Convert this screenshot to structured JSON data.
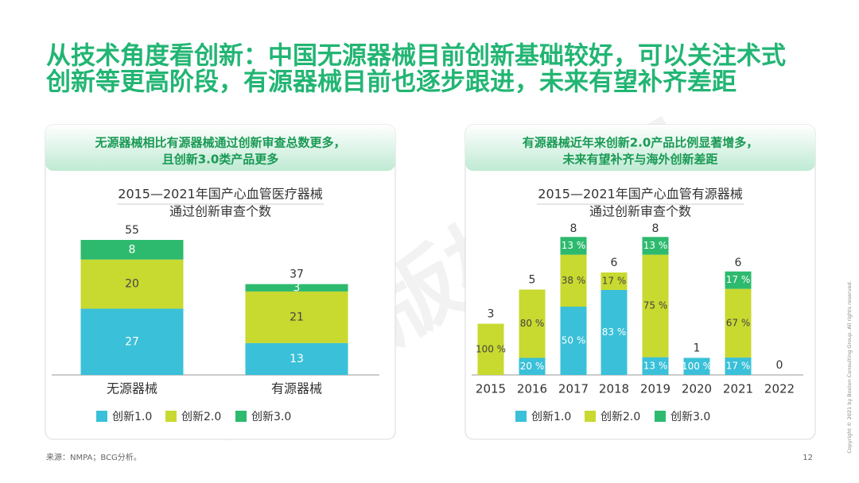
{
  "slide": {
    "title": [
      "从技术角度看创新：中国无源器械目前创新基础较好，可以关注术式",
      "创新等更高阶段，有源器械目前也逐步跟进，未来有望补齐差距"
    ],
    "watermark": "BCG版权所有",
    "source": "来源：NMPA；BCG分析。",
    "page_number": "12",
    "copyright": "Copyright © 2021 by Boston Consulting Group. All rights reserved."
  },
  "panels": [
    {
      "header": [
        "无源器械相比有源器械通过创新审查总数更多，",
        "且创新3.0类产品更多"
      ]
    },
    {
      "header": [
        "有源器械近年来创新2.0产品比例显著增多，",
        "未来有望补齐与海外创新差距"
      ]
    }
  ],
  "chart_data": [
    {
      "type": "stacked_bar",
      "title": [
        "2015—2021年国产心血管医疗器械",
        "通过创新审查个数"
      ],
      "categories": [
        "无源器械",
        "有源器械"
      ],
      "totals": [
        55,
        37
      ],
      "series": [
        {
          "name": "创新1.0",
          "color": "#3ac0d8",
          "values": [
            27,
            13
          ]
        },
        {
          "name": "创新2.0",
          "color": "#c8d92f",
          "values": [
            20,
            21
          ]
        },
        {
          "name": "创新3.0",
          "color": "#2dba6e",
          "values": [
            8,
            3
          ]
        }
      ]
    },
    {
      "type": "percent_stacked_bar",
      "title": [
        "2015—2021年国产心血管有源器械",
        "通过创新审查个数"
      ],
      "categories": [
        "2015",
        "2016",
        "2017",
        "2018",
        "2019",
        "2020",
        "2021",
        "2022"
      ],
      "totals": [
        3,
        5,
        8,
        6,
        8,
        1,
        6,
        0
      ],
      "series": [
        {
          "name": "创新1.0",
          "color": "#3ac0d8",
          "values": [
            null,
            20,
            50,
            83,
            13,
            100,
            17,
            null
          ],
          "value_labels": [
            null,
            "20 %",
            "50 %",
            "83 %",
            "13 %",
            "100 %",
            "17 %",
            null
          ]
        },
        {
          "name": "创新2.0",
          "color": "#c8d92f",
          "values": [
            100,
            80,
            38,
            17,
            75,
            null,
            67,
            null
          ],
          "value_labels": [
            "100 %",
            "80 %",
            "38 %",
            "17 %",
            "75 %",
            null,
            "67 %",
            null
          ]
        },
        {
          "name": "创新3.0",
          "color": "#2dba6e",
          "values": [
            null,
            null,
            13,
            null,
            13,
            null,
            17,
            null
          ],
          "value_labels": [
            null,
            null,
            "13 %",
            null,
            "13 %",
            null,
            "17 %",
            null
          ]
        }
      ]
    }
  ]
}
